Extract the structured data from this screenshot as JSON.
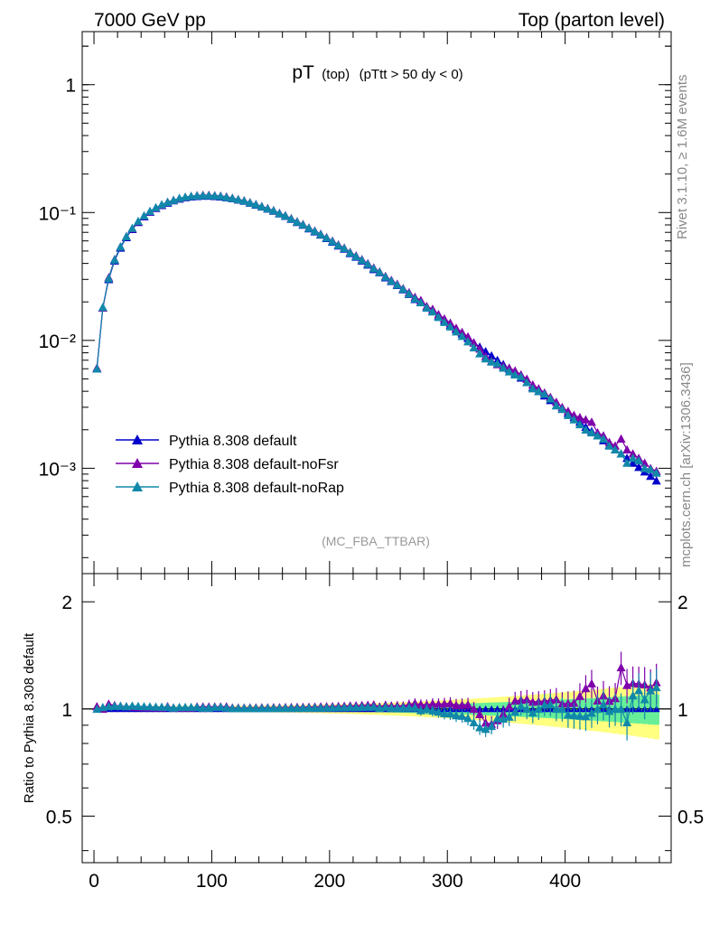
{
  "header": {
    "left": "7000 GeV pp",
    "right": "Top (parton level)"
  },
  "side": {
    "rivet": "Rivet 3.1.10, ≥ 1.6M events",
    "mcplots": "mcplots.cern.ch [arXiv:1306.3436]"
  },
  "colors": {
    "default": "#0000cc",
    "noFsr": "#7f00aa",
    "noRap": "#1188aa",
    "band_outer": "#ffff80",
    "band_inner": "#66ee99"
  },
  "chart_data": {
    "type": "line",
    "title": {
      "main": "pT",
      "sub1": "(top)",
      "sub2": "(pTtt > 50 dy < 0)"
    },
    "watermark": "(MC_FBA_TTBAR)",
    "ratio_ylabel": "Ratio to Pythia 8.308 default",
    "x_ticks": [
      "0",
      "100",
      "200",
      "300",
      "400"
    ],
    "main_y_ticks": [
      "1",
      "10⁻¹",
      "10⁻²",
      "10⁻³"
    ],
    "ratio_y_ticks": [
      "2",
      "1",
      "0.5"
    ],
    "xlim": [
      -10,
      490
    ],
    "main_ylim": [
      0.00015,
      2.6
    ],
    "main_yscale": "log",
    "ratio_ylim": [
      0.37,
      2.4
    ],
    "ratio_yscale": "log",
    "legend_position": "bottom-left",
    "x": [
      2.5,
      7.5,
      12.5,
      17.5,
      22.5,
      27.5,
      32.5,
      37.5,
      42.5,
      47.5,
      52.5,
      57.5,
      62.5,
      67.5,
      72.5,
      77.5,
      82.5,
      87.5,
      92.5,
      97.5,
      102.5,
      107.5,
      112.5,
      117.5,
      122.5,
      127.5,
      132.5,
      137.5,
      142.5,
      147.5,
      152.5,
      157.5,
      162.5,
      167.5,
      172.5,
      177.5,
      182.5,
      187.5,
      192.5,
      197.5,
      202.5,
      207.5,
      212.5,
      217.5,
      222.5,
      227.5,
      232.5,
      237.5,
      242.5,
      247.5,
      252.5,
      257.5,
      262.5,
      267.5,
      272.5,
      277.5,
      282.5,
      287.5,
      292.5,
      297.5,
      302.5,
      307.5,
      312.5,
      317.5,
      322.5,
      327.5,
      332.5,
      337.5,
      342.5,
      347.5,
      352.5,
      357.5,
      362.5,
      367.5,
      372.5,
      377.5,
      382.5,
      387.5,
      392.5,
      397.5,
      402.5,
      407.5,
      412.5,
      417.5,
      422.5,
      427.5,
      432.5,
      437.5,
      442.5,
      447.5,
      452.5,
      457.5,
      462.5,
      467.5,
      472.5,
      477.5
    ],
    "series": [
      {
        "name": "Pythia 8.308 default",
        "values": [
          0.006,
          0.018,
          0.03,
          0.042,
          0.053,
          0.064,
          0.074,
          0.084,
          0.093,
          0.101,
          0.108,
          0.114,
          0.119,
          0.124,
          0.128,
          0.131,
          0.133,
          0.134,
          0.135,
          0.135,
          0.134,
          0.133,
          0.131,
          0.129,
          0.126,
          0.123,
          0.119,
          0.115,
          0.111,
          0.107,
          0.103,
          0.098,
          0.094,
          0.089,
          0.084,
          0.08,
          0.075,
          0.071,
          0.067,
          0.063,
          0.059,
          0.055,
          0.052,
          0.048,
          0.045,
          0.042,
          0.039,
          0.036,
          0.034,
          0.031,
          0.029,
          0.027,
          0.025,
          0.023,
          0.021,
          0.02,
          0.018,
          0.017,
          0.0155,
          0.0143,
          0.0132,
          0.0122,
          0.0113,
          0.0104,
          0.0096,
          0.0089,
          0.0082,
          0.0076,
          0.007,
          0.0065,
          0.006,
          0.0055,
          0.0051,
          0.0047,
          0.0043,
          0.004,
          0.0037,
          0.0034,
          0.0031,
          0.0029,
          0.0027,
          0.0025,
          0.0023,
          0.0021,
          0.00195,
          0.0018,
          0.00165,
          0.00152,
          0.0014,
          0.0013,
          0.0012,
          0.0011,
          0.00102,
          0.00094,
          0.00087,
          0.0008
        ]
      },
      {
        "name": "Pythia 8.308 default-noFsr",
        "values": [
          0.0061,
          0.018,
          0.031,
          0.043,
          0.054,
          0.065,
          0.075,
          0.085,
          0.094,
          0.102,
          0.109,
          0.115,
          0.121,
          0.125,
          0.129,
          0.132,
          0.134,
          0.136,
          0.137,
          0.137,
          0.136,
          0.135,
          0.133,
          0.13,
          0.127,
          0.124,
          0.12,
          0.116,
          0.112,
          0.108,
          0.104,
          0.099,
          0.095,
          0.09,
          0.085,
          0.081,
          0.076,
          0.072,
          0.068,
          0.064,
          0.06,
          0.056,
          0.053,
          0.049,
          0.046,
          0.043,
          0.04,
          0.037,
          0.0345,
          0.0318,
          0.0296,
          0.0276,
          0.0255,
          0.0237,
          0.0218,
          0.0206,
          0.0185,
          0.0176,
          0.016,
          0.0148,
          0.0137,
          0.0125,
          0.0116,
          0.0107,
          0.0096,
          0.0086,
          0.0075,
          0.0069,
          0.0065,
          0.0063,
          0.0061,
          0.0058,
          0.0054,
          0.005,
          0.0045,
          0.0042,
          0.0039,
          0.0036,
          0.0033,
          0.003,
          0.0028,
          0.0026,
          0.0025,
          0.0024,
          0.0023,
          0.0019,
          0.0018,
          0.0016,
          0.0015,
          0.0017,
          0.0014,
          0.0013,
          0.0012,
          0.0011,
          0.001,
          0.00095
        ]
      },
      {
        "name": "Pythia 8.308 default-noRap",
        "values": [
          0.006,
          0.0182,
          0.0305,
          0.0428,
          0.054,
          0.065,
          0.0755,
          0.0855,
          0.0945,
          0.1025,
          0.1095,
          0.1155,
          0.1205,
          0.125,
          0.1295,
          0.1325,
          0.1345,
          0.1355,
          0.136,
          0.136,
          0.1355,
          0.1345,
          0.132,
          0.1295,
          0.1265,
          0.1235,
          0.1195,
          0.1155,
          0.1115,
          0.1075,
          0.1035,
          0.0985,
          0.0945,
          0.0895,
          0.0845,
          0.0805,
          0.0755,
          0.0715,
          0.0675,
          0.0635,
          0.0595,
          0.0555,
          0.0525,
          0.0485,
          0.0455,
          0.0425,
          0.0395,
          0.0365,
          0.0342,
          0.0314,
          0.0292,
          0.0272,
          0.0252,
          0.0232,
          0.0212,
          0.0198,
          0.018,
          0.0168,
          0.0152,
          0.0139,
          0.0128,
          0.0117,
          0.0108,
          0.0098,
          0.0088,
          0.0079,
          0.0072,
          0.0068,
          0.0066,
          0.0061,
          0.0057,
          0.0054,
          0.0052,
          0.0047,
          0.0042,
          0.004,
          0.0038,
          0.0035,
          0.0031,
          0.0029,
          0.0026,
          0.0024,
          0.0022,
          0.002,
          0.0019,
          0.0018,
          0.0017,
          0.0015,
          0.0014,
          0.0013,
          0.0011,
          0.0012,
          0.00115,
          0.001,
          0.00098,
          0.00092
        ]
      }
    ]
  }
}
